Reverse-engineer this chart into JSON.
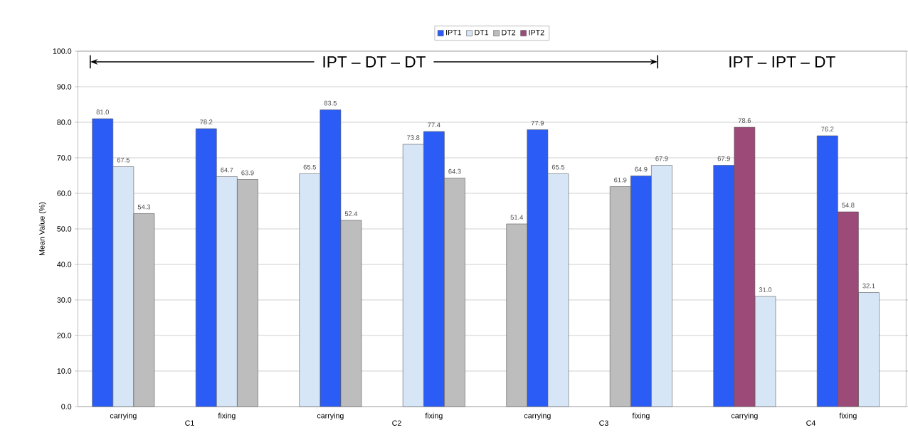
{
  "chart_data": {
    "type": "bar",
    "ylabel": "Mean Value (%)",
    "categories": [
      null,
      "carrying",
      null,
      null,
      null,
      null,
      "fixing",
      null,
      null,
      null,
      null,
      "carrying",
      null,
      null,
      null,
      null,
      "fixing",
      null,
      null,
      null,
      null,
      "carrying",
      null,
      null,
      null,
      null,
      "fixing",
      null,
      null,
      null,
      null,
      "carrying",
      null,
      null,
      null,
      null,
      "fixing",
      null,
      null,
      null
    ],
    "ylim": [
      0,
      100
    ],
    "yticks": [
      {
        "value": 0,
        "label": "0.0"
      },
      {
        "value": 10,
        "label": "10.0"
      },
      {
        "value": 20,
        "label": "20.0"
      },
      {
        "value": 30,
        "label": "30.0"
      },
      {
        "value": 40,
        "label": "40.0"
      },
      {
        "value": 50,
        "label": "50.0"
      },
      {
        "value": 60,
        "label": "60.0"
      },
      {
        "value": 70,
        "label": "70.0"
      },
      {
        "value": 80,
        "label": "80.0"
      },
      {
        "value": 90,
        "label": "90.0"
      },
      {
        "value": 100,
        "label": "100.0"
      }
    ],
    "series": [
      {
        "name": "IPT1",
        "color": "#2b5cf5",
        "values": [
          81.0,
          null,
          null,
          null,
          null,
          78.2,
          null,
          null,
          null,
          null,
          null,
          83.5,
          null,
          null,
          null,
          null,
          77.4,
          null,
          null,
          null,
          null,
          77.9,
          null,
          null,
          null,
          null,
          64.9,
          null,
          null,
          null,
          67.9,
          null,
          null,
          null,
          null,
          76.2,
          null,
          null,
          null,
          null
        ],
        "value_labels": [
          "81.0",
          null,
          null,
          null,
          null,
          "78.2",
          null,
          null,
          null,
          null,
          null,
          "83.5",
          null,
          null,
          null,
          null,
          "77.4",
          null,
          null,
          null,
          null,
          "77.9",
          null,
          null,
          null,
          null,
          "64.9",
          null,
          null,
          null,
          "67.9",
          null,
          null,
          null,
          null,
          "76.2",
          null,
          null,
          null,
          null
        ]
      },
      {
        "name": "DT1",
        "color": "#d6e6f7",
        "values": [
          null,
          67.5,
          null,
          null,
          null,
          null,
          64.7,
          null,
          null,
          null,
          65.5,
          null,
          null,
          null,
          null,
          73.8,
          null,
          null,
          null,
          null,
          null,
          null,
          65.5,
          null,
          null,
          null,
          null,
          67.9,
          null,
          null,
          null,
          null,
          31.0,
          null,
          null,
          null,
          null,
          32.1,
          null,
          null
        ],
        "value_labels": [
          null,
          "67.5",
          null,
          null,
          null,
          null,
          "64.7",
          null,
          null,
          null,
          "65.5",
          null,
          null,
          null,
          null,
          "73.8",
          null,
          null,
          null,
          null,
          null,
          null,
          "65.5",
          null,
          null,
          null,
          null,
          "67.9",
          null,
          null,
          null,
          null,
          "31.0",
          null,
          null,
          null,
          null,
          "32.1",
          null,
          null
        ]
      },
      {
        "name": "DT2",
        "color": "#bdbdbd",
        "values": [
          null,
          null,
          54.3,
          null,
          null,
          null,
          null,
          63.9,
          null,
          null,
          null,
          null,
          52.4,
          null,
          null,
          null,
          null,
          64.3,
          null,
          null,
          51.4,
          null,
          null,
          null,
          null,
          61.9,
          null,
          null,
          null,
          null,
          null,
          null,
          null,
          null,
          null,
          null,
          null,
          null,
          null,
          null
        ],
        "value_labels": [
          null,
          null,
          "54.3",
          null,
          null,
          null,
          null,
          "63.9",
          null,
          null,
          null,
          null,
          "52.4",
          null,
          null,
          null,
          null,
          "64.3",
          null,
          null,
          "51.4",
          null,
          null,
          null,
          null,
          "61.9",
          null,
          null,
          null,
          null,
          null,
          null,
          null,
          null,
          null,
          null,
          null,
          null,
          null,
          null
        ]
      },
      {
        "name": "IPT2",
        "color": "#9c4a78",
        "values": [
          null,
          null,
          null,
          null,
          null,
          null,
          null,
          null,
          null,
          null,
          null,
          null,
          null,
          null,
          null,
          null,
          null,
          null,
          null,
          null,
          null,
          null,
          null,
          null,
          null,
          null,
          null,
          null,
          null,
          null,
          null,
          78.6,
          null,
          null,
          null,
          null,
          54.8,
          null,
          null,
          null
        ],
        "value_labels": [
          null,
          null,
          null,
          null,
          null,
          null,
          null,
          null,
          null,
          null,
          null,
          null,
          null,
          null,
          null,
          null,
          null,
          null,
          null,
          null,
          null,
          null,
          null,
          null,
          null,
          null,
          null,
          null,
          null,
          null,
          null,
          "78.6",
          null,
          null,
          null,
          null,
          "54.8",
          null,
          null,
          null
        ]
      }
    ],
    "annotations": [
      "IPT – DT – DT",
      "IPT – IPT – DT",
      "C1",
      "C2",
      "C3",
      "C4"
    ],
    "grid": "y",
    "legend": "top"
  }
}
